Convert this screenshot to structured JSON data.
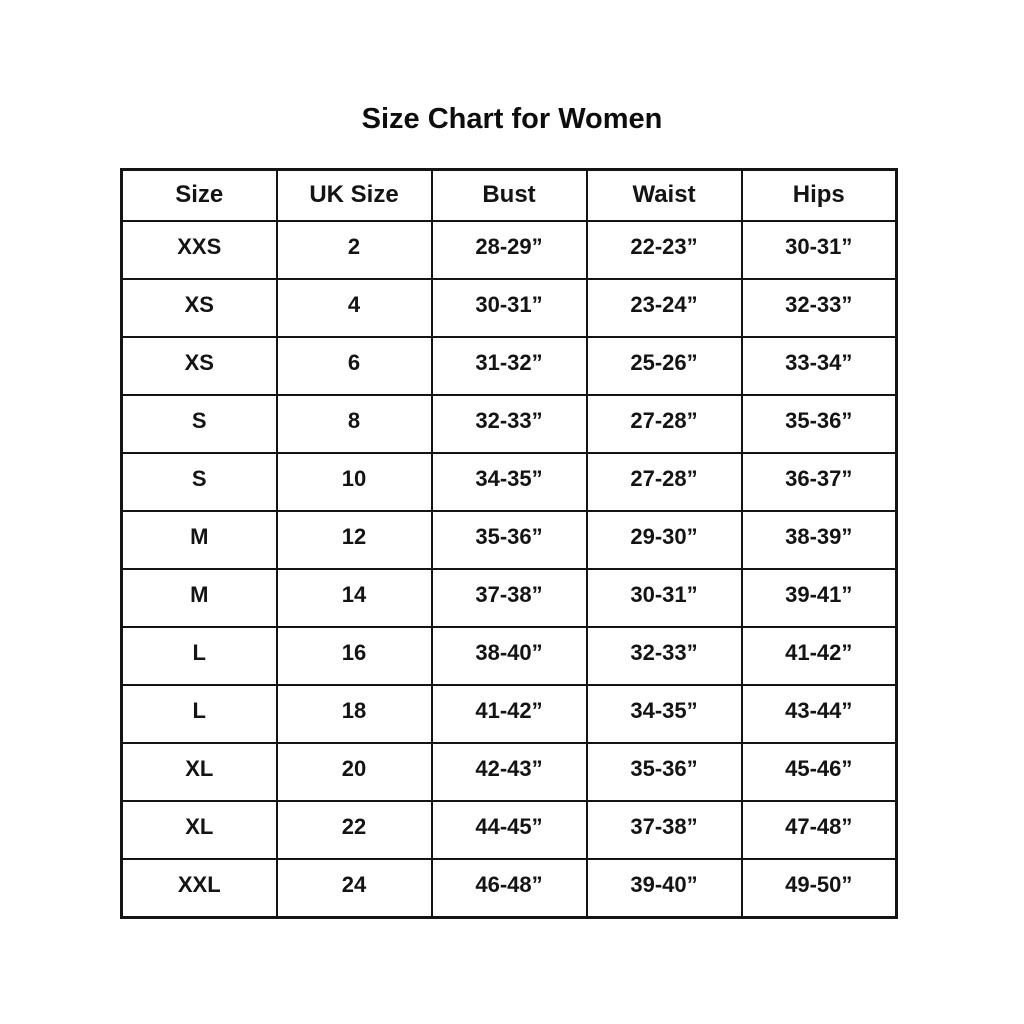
{
  "page": {
    "background": "#ffffff",
    "text_color": "#141414",
    "border_color": "#141414"
  },
  "title": "Size Chart for Women",
  "chart_data": {
    "type": "table",
    "title": "Size Chart for Women",
    "columns": [
      "Size",
      "UK Size",
      "Bust",
      "Waist",
      "Hips"
    ],
    "rows": [
      [
        "XXS",
        "2",
        "28-29”",
        "22-23”",
        "30-31”"
      ],
      [
        "XS",
        "4",
        "30-31”",
        "23-24”",
        "32-33”"
      ],
      [
        "XS",
        "6",
        "31-32”",
        "25-26”",
        "33-34”"
      ],
      [
        "S",
        "8",
        "32-33”",
        "27-28”",
        "35-36”"
      ],
      [
        "S",
        "10",
        "34-35”",
        "27-28”",
        "36-37”"
      ],
      [
        "M",
        "12",
        "35-36”",
        "29-30”",
        "38-39”"
      ],
      [
        "M",
        "14",
        "37-38”",
        "30-31”",
        "39-41”"
      ],
      [
        "L",
        "16",
        "38-40”",
        "32-33”",
        "41-42”"
      ],
      [
        "L",
        "18",
        "41-42”",
        "34-35”",
        "43-44”"
      ],
      [
        "XL",
        "20",
        "42-43”",
        "35-36”",
        "45-46”"
      ],
      [
        "XL",
        "22",
        "44-45”",
        "37-38”",
        "47-48”"
      ],
      [
        "XXL",
        "24",
        "46-48”",
        "39-40”",
        "49-50”"
      ]
    ]
  }
}
